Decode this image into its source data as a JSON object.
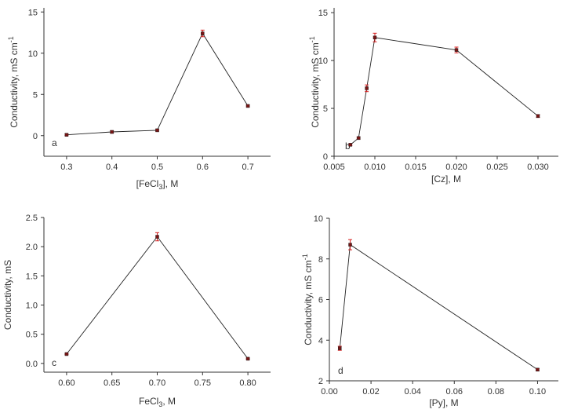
{
  "chart_data": [
    {
      "type": "line",
      "panel_label": "a",
      "xlabel": "[FeCl3], M",
      "xlabel_main": "[FeCl",
      "xlabel_sub": "3",
      "xlabel_tail": "], M",
      "ylabel": "Conductivity, mS cm-1",
      "ylabel_main": "Conductivity, mS cm",
      "ylabel_sup": "-1",
      "xlim": [
        0.25,
        0.75
      ],
      "ylim": [
        -2.5,
        15.5
      ],
      "xticks": [
        0.3,
        0.4,
        0.5,
        0.6,
        0.7
      ],
      "xtick_labels": [
        "0.3",
        "0.4",
        "0.5",
        "0.6",
        "0.7"
      ],
      "yticks": [
        0,
        5,
        10,
        15
      ],
      "ytick_labels": [
        "0",
        "5",
        "10",
        "15"
      ],
      "x": [
        0.3,
        0.4,
        0.5,
        0.6,
        0.7
      ],
      "y": [
        0.1,
        0.45,
        0.65,
        12.4,
        3.6
      ],
      "err": [
        0.1,
        0.15,
        0.1,
        0.4,
        0.1
      ]
    },
    {
      "type": "line",
      "panel_label": "b",
      "xlabel": "[Cz], M",
      "xlabel_main": "[Cz], M",
      "xlabel_sub": "",
      "xlabel_tail": "",
      "ylabel": "Conductivity, mS cm-1",
      "ylabel_main": "Conductivity, mS cm",
      "ylabel_sup": "-1",
      "xlim": [
        0.005,
        0.0325
      ],
      "ylim": [
        0,
        15.5
      ],
      "xticks": [
        0.005,
        0.01,
        0.015,
        0.02,
        0.025,
        0.03
      ],
      "xtick_labels": [
        "0.005",
        "0.010",
        "0.015",
        "0.020",
        "0.025",
        "0.030"
      ],
      "yticks": [
        0,
        5,
        10,
        15
      ],
      "ytick_labels": [
        "0",
        "5",
        "10",
        "15"
      ],
      "x": [
        0.007,
        0.008,
        0.009,
        0.01,
        0.02,
        0.03
      ],
      "y": [
        1.2,
        1.9,
        7.1,
        12.4,
        11.1,
        4.2
      ],
      "err": [
        0.1,
        0.1,
        0.35,
        0.45,
        0.3,
        0.15
      ]
    },
    {
      "type": "line",
      "panel_label": "c",
      "xlabel": "FeCl3, M",
      "xlabel_main": "FeCl",
      "xlabel_sub": "3",
      "xlabel_tail": ", M",
      "ylabel": "Conductivity, mS",
      "ylabel_main": "Conductivity, mS",
      "ylabel_sup": "",
      "xlim": [
        0.575,
        0.825
      ],
      "ylim": [
        -0.15,
        2.5
      ],
      "xticks": [
        0.6,
        0.65,
        0.7,
        0.75,
        0.8
      ],
      "xtick_labels": [
        "0.60",
        "0.65",
        "0.70",
        "0.75",
        "0.80"
      ],
      "yticks": [
        0,
        0.5,
        1,
        1.5,
        2,
        2.5
      ],
      "ytick_labels": [
        "0.0",
        "0.5",
        "1.0",
        "1.5",
        "2.0",
        "2.5"
      ],
      "x": [
        0.6,
        0.7,
        0.8
      ],
      "y": [
        0.16,
        2.17,
        0.08
      ],
      "err": [
        0.01,
        0.07,
        0.01
      ]
    },
    {
      "type": "line",
      "panel_label": "d",
      "xlabel": "[Py], M",
      "xlabel_main": "[Py], M",
      "xlabel_sub": "",
      "xlabel_tail": "",
      "ylabel": "Conductivity, mS cm-1",
      "ylabel_main": "Conductivity, mS cm",
      "ylabel_sup": "-1",
      "xlim": [
        0,
        0.11
      ],
      "ylim": [
        2,
        10
      ],
      "xticks": [
        0,
        0.02,
        0.04,
        0.06,
        0.08,
        0.1
      ],
      "xtick_labels": [
        "0.00",
        "0.02",
        "0.04",
        "0.06",
        "0.08",
        "0.10"
      ],
      "yticks": [
        2,
        4,
        6,
        8,
        10
      ],
      "ytick_labels": [
        "2",
        "4",
        "6",
        "8",
        "10"
      ],
      "x": [
        0.005,
        0.01,
        0.1
      ],
      "y": [
        3.6,
        8.7,
        2.55
      ],
      "err": [
        0.1,
        0.25,
        0.05
      ]
    }
  ]
}
